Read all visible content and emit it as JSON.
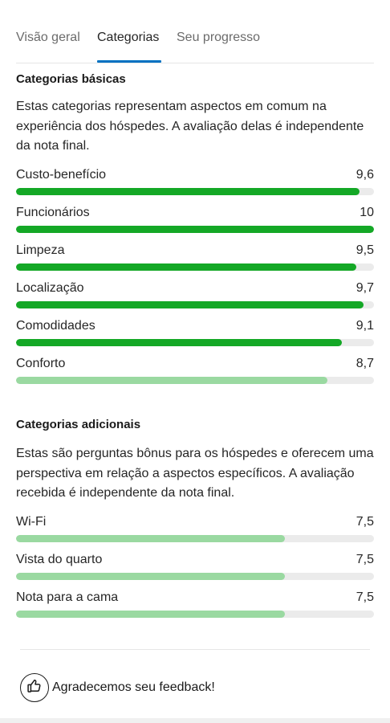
{
  "tabs": [
    {
      "label": "Visão geral",
      "active": false
    },
    {
      "label": "Categorias",
      "active": true
    },
    {
      "label": "Seu progresso",
      "active": false
    }
  ],
  "basic": {
    "title": "Categorias básicas",
    "description": "Estas categorias representam aspectos em comum na experiência dos hóspedes. A avaliação delas é independente da nota final.",
    "items": [
      {
        "label": "Custo-benefício",
        "value": "9,6",
        "score": 9.6
      },
      {
        "label": "Funcionários",
        "value": "10",
        "score": 10
      },
      {
        "label": "Limpeza",
        "value": "9,5",
        "score": 9.5
      },
      {
        "label": "Localização",
        "value": "9,7",
        "score": 9.7
      },
      {
        "label": "Comodidades",
        "value": "9,1",
        "score": 9.1
      },
      {
        "label": "Conforto",
        "value": "8,7",
        "score": 8.7
      }
    ]
  },
  "additional": {
    "title": "Categorias adicionais",
    "description": "Estas são perguntas bônus para os hóspedes e oferecem uma perspectiva em relação a aspectos específicos. A avaliação recebida é independente da nota final.",
    "items": [
      {
        "label": "Wi-Fi",
        "value": "7,5",
        "score": 7.5
      },
      {
        "label": "Vista do quarto",
        "value": "7,5",
        "score": 7.5
      },
      {
        "label": "Nota para a cama",
        "value": "7,5",
        "score": 7.5
      }
    ]
  },
  "score_max": 10,
  "colors": {
    "accent_tab": "#0071c2",
    "bar_high": "#14a826",
    "bar_low": "#9ad9a1",
    "track": "#ebebeb"
  },
  "feedback": {
    "icon": "thumbs-up-icon",
    "text": "Agradecemos seu feedback!"
  }
}
